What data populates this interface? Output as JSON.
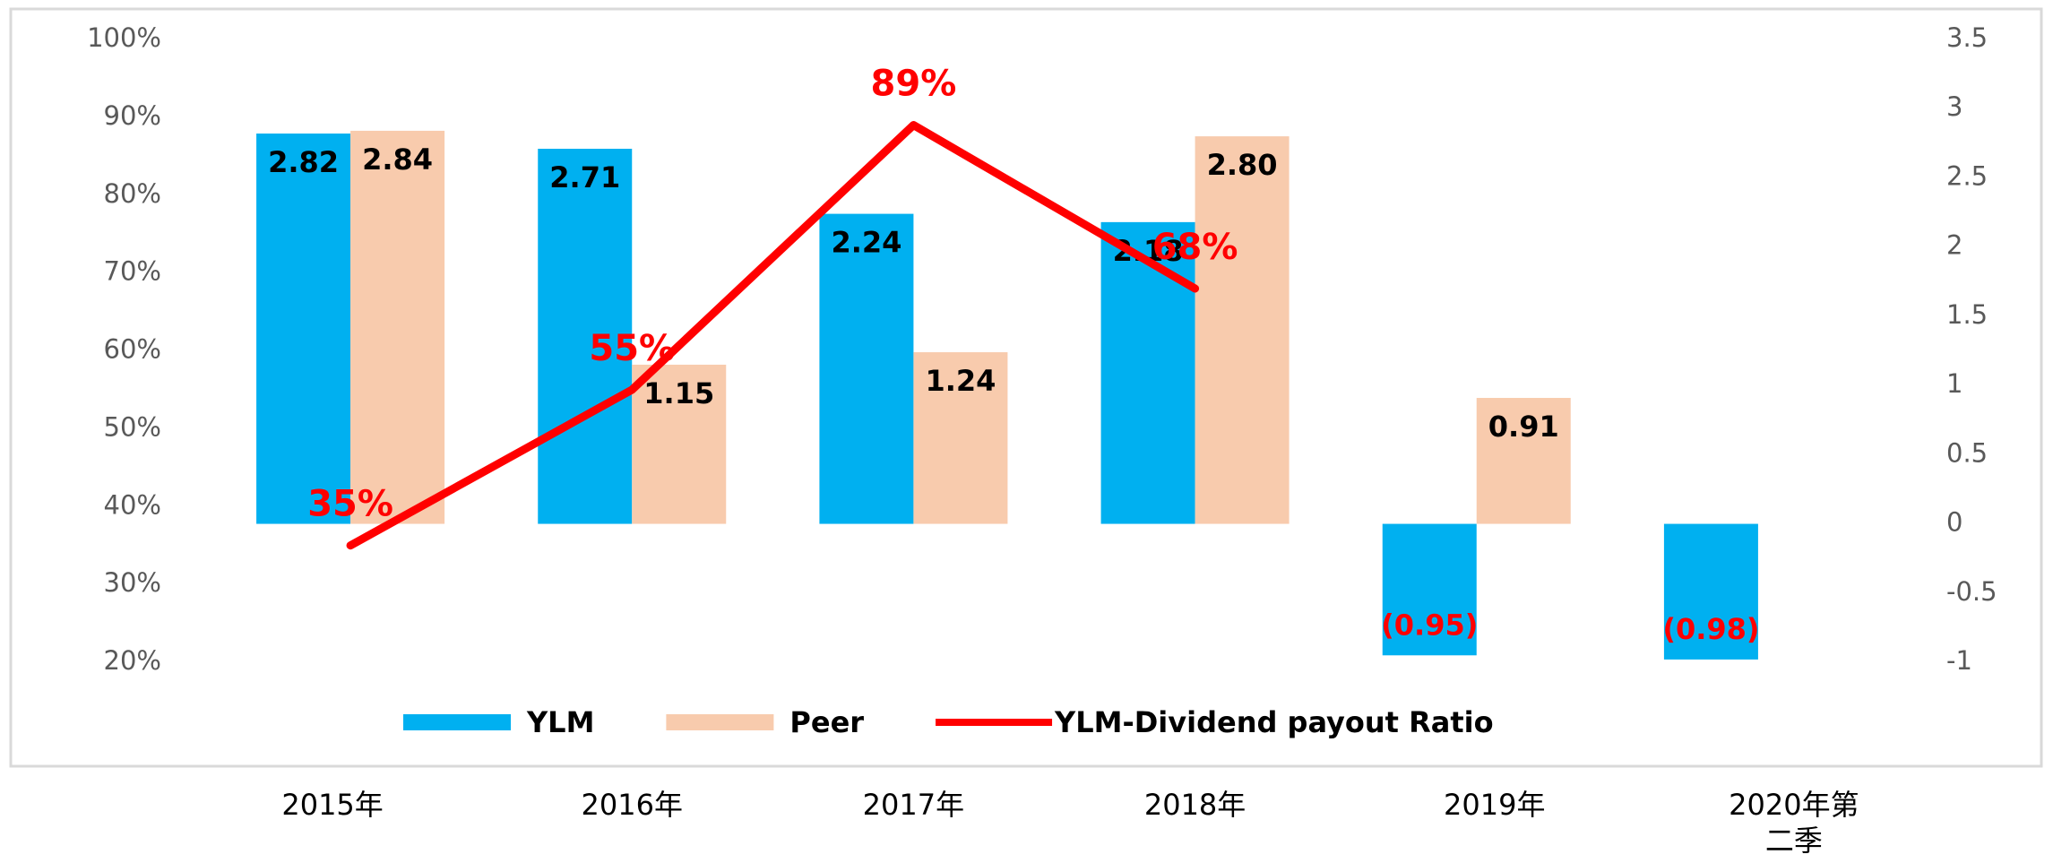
{
  "chart_data": {
    "type": "bar-line",
    "categories": [
      "2015年",
      "2016年",
      "2017年",
      "2018年",
      "2019年",
      "2020年第二季"
    ],
    "series": [
      {
        "name": "YLM",
        "type": "bar",
        "axis": "y2",
        "color": "#00b0f0",
        "values": [
          2.82,
          2.71,
          2.24,
          2.18,
          -0.95,
          -0.98
        ],
        "value_labels": [
          "2.82",
          "2.71",
          "2.24",
          "2.18",
          "(0.95)",
          "(0.98)"
        ]
      },
      {
        "name": "Peer",
        "type": "bar",
        "axis": "y2",
        "color": "#f8cbad",
        "values": [
          2.84,
          1.15,
          1.24,
          2.8,
          0.91,
          null
        ],
        "value_labels": [
          "2.84",
          "1.15",
          "1.24",
          "2.80",
          "0.91",
          null
        ]
      },
      {
        "name": "YLM-Dividend payout Ratio",
        "type": "line",
        "axis": "y",
        "color": "#ff0000",
        "values": [
          35,
          55,
          89,
          68,
          null,
          null
        ],
        "value_labels": [
          "35%",
          "55%",
          "89%",
          "68%",
          null,
          null
        ]
      }
    ],
    "ylim": [
      20,
      100
    ],
    "yticks": [
      {
        "value": 20,
        "label": "20%"
      },
      {
        "value": 30,
        "label": "30%"
      },
      {
        "value": 40,
        "label": "40%"
      },
      {
        "value": 50,
        "label": "50%"
      },
      {
        "value": 60,
        "label": "60%"
      },
      {
        "value": 70,
        "label": "70%"
      },
      {
        "value": 80,
        "label": "80%"
      },
      {
        "value": 90,
        "label": "90%"
      },
      {
        "value": 100,
        "label": "100%"
      }
    ],
    "y2lim": [
      -1,
      3.5
    ],
    "y2ticks": [
      -1,
      -0.5,
      0,
      0.5,
      1,
      1.5,
      2,
      2.5,
      3,
      3.5
    ],
    "legend": "bottom",
    "grid": false
  }
}
